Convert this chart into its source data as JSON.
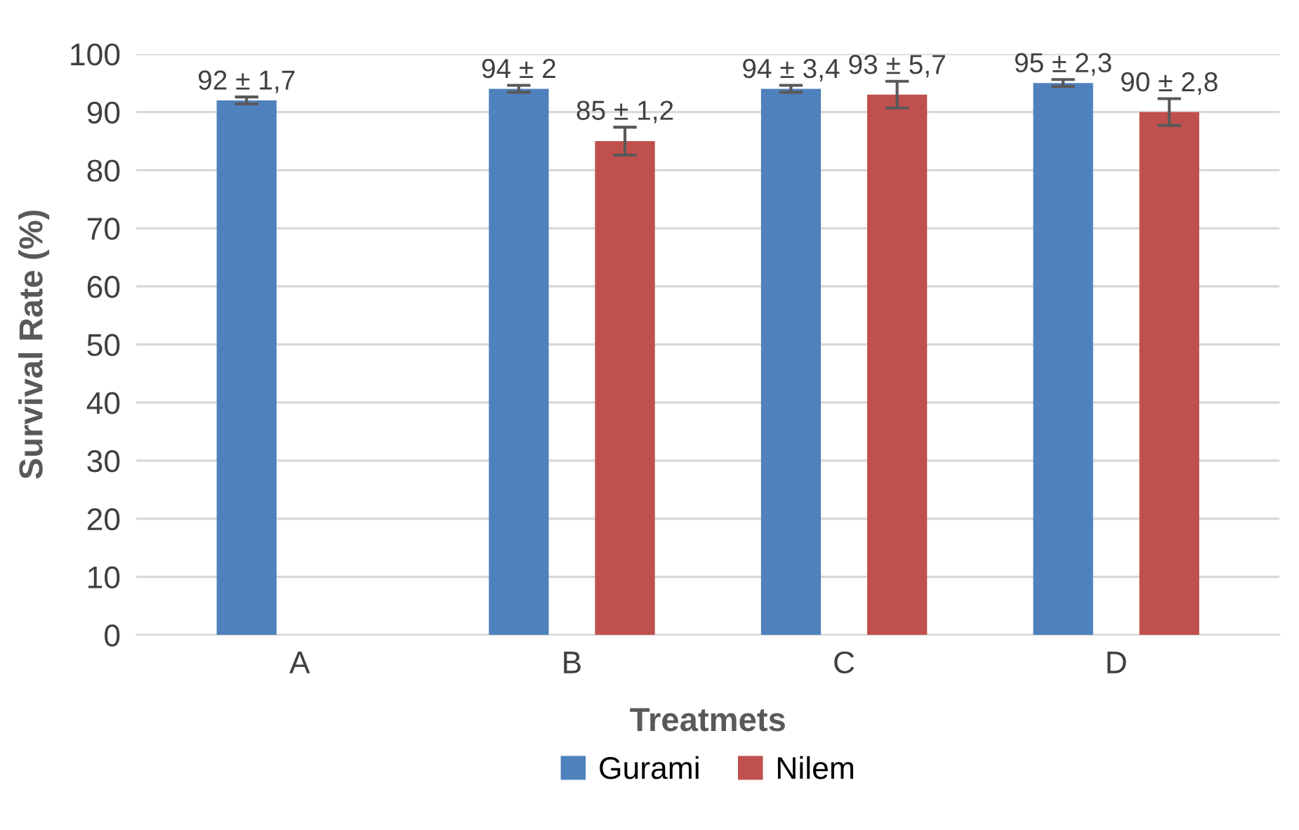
{
  "chart_data": {
    "type": "bar",
    "xlabel": "Treatmets",
    "ylabel": "Survival Rate (%)",
    "categories": [
      "A",
      "B",
      "C",
      "D"
    ],
    "series": [
      {
        "name": "Gurami",
        "color": "#4f81bd",
        "values": [
          92,
          94,
          94,
          95
        ],
        "errors": [
          0.6,
          0.6,
          0.6,
          0.6
        ],
        "value_labels": [
          "92 ± 1,7",
          "94 ± 2",
          "94 ± 3,4",
          "95 ± 2,3"
        ]
      },
      {
        "name": "Nilem",
        "color": "#c0504d",
        "values": [
          null,
          85,
          93,
          90
        ],
        "errors": [
          null,
          2.4,
          2.3,
          2.3
        ],
        "value_labels": [
          null,
          "85 ± 1,2",
          "93 ± 5,7",
          "90 ± 2,8"
        ]
      }
    ],
    "ylim": [
      0,
      100
    ],
    "yticks": [
      0,
      10,
      20,
      30,
      40,
      50,
      60,
      70,
      80,
      90,
      100
    ],
    "grid": "y",
    "legend": "bottom"
  }
}
